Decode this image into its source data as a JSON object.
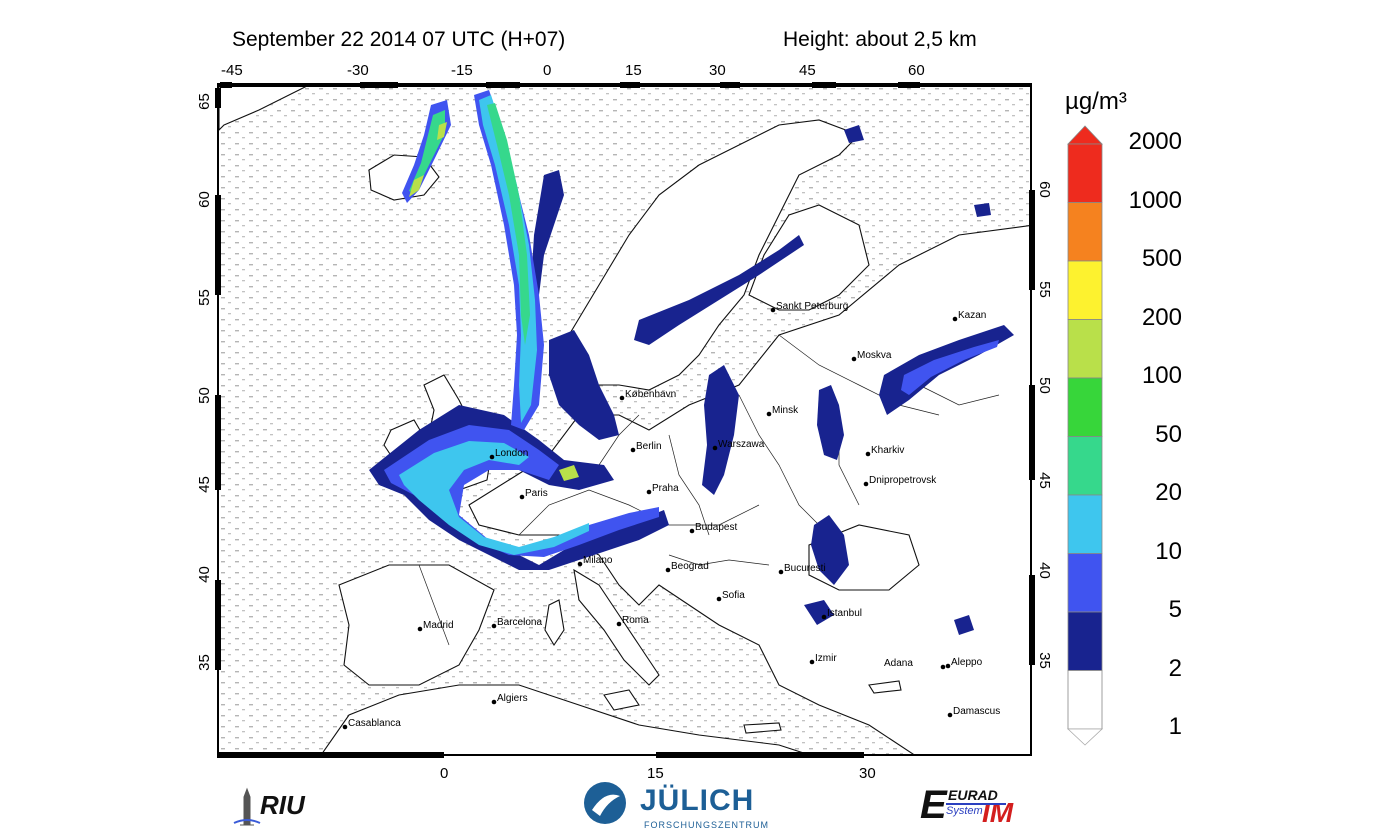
{
  "header": {
    "title": "September 22 2014 07 UTC (H+07)",
    "height_label": "Height: about 2,5 km"
  },
  "axes": {
    "top_lon_ticks": [
      "-45",
      "-30",
      "-15",
      "0",
      "15",
      "30",
      "45",
      "60"
    ],
    "bottom_lon_ticks": [
      "0",
      "15",
      "30"
    ],
    "left_lat_ticks": [
      "65",
      "60",
      "55",
      "50",
      "45",
      "40",
      "35"
    ],
    "right_lat_ticks": [
      "60",
      "55",
      "50",
      "45",
      "40",
      "35"
    ]
  },
  "cities": [
    {
      "name": "Sankt Peterburg"
    },
    {
      "name": "Kazan"
    },
    {
      "name": "Moskva"
    },
    {
      "name": "København"
    },
    {
      "name": "Minsk"
    },
    {
      "name": "Berlin"
    },
    {
      "name": "Warszawa"
    },
    {
      "name": "Kharkiv"
    },
    {
      "name": "London"
    },
    {
      "name": "Dnipropetrovsk"
    },
    {
      "name": "Praha"
    },
    {
      "name": "Paris"
    },
    {
      "name": "Budapest"
    },
    {
      "name": "Milano"
    },
    {
      "name": "Beograd"
    },
    {
      "name": "Bucuresti"
    },
    {
      "name": "Sofia"
    },
    {
      "name": "Istanbul"
    },
    {
      "name": "Madrid"
    },
    {
      "name": "Barcelona"
    },
    {
      "name": "Roma"
    },
    {
      "name": "Izmir"
    },
    {
      "name": "Adana"
    },
    {
      "name": "Aleppo"
    },
    {
      "name": "Algiers"
    },
    {
      "name": "Damascus"
    },
    {
      "name": "Casablanca"
    }
  ],
  "colorbar": {
    "unit": "µg/m³",
    "levels": [
      "2000",
      "1000",
      "500",
      "200",
      "100",
      "50",
      "20",
      "10",
      "5",
      "2",
      "1"
    ],
    "colors": [
      "#ee2b1e",
      "#f5821f",
      "#fdf22f",
      "#b9e04a",
      "#37d63a",
      "#36d88c",
      "#3ec6ee",
      "#4054f0",
      "#18238f",
      "#ffffff"
    ]
  },
  "logos": {
    "riu": "RIU",
    "julich": "JÜLICH",
    "julich_sub": "FORSCHUNGSZENTRUM",
    "eurad_top": "EURAD",
    "eurad_im": "IM",
    "eurad_sub": "System"
  }
}
